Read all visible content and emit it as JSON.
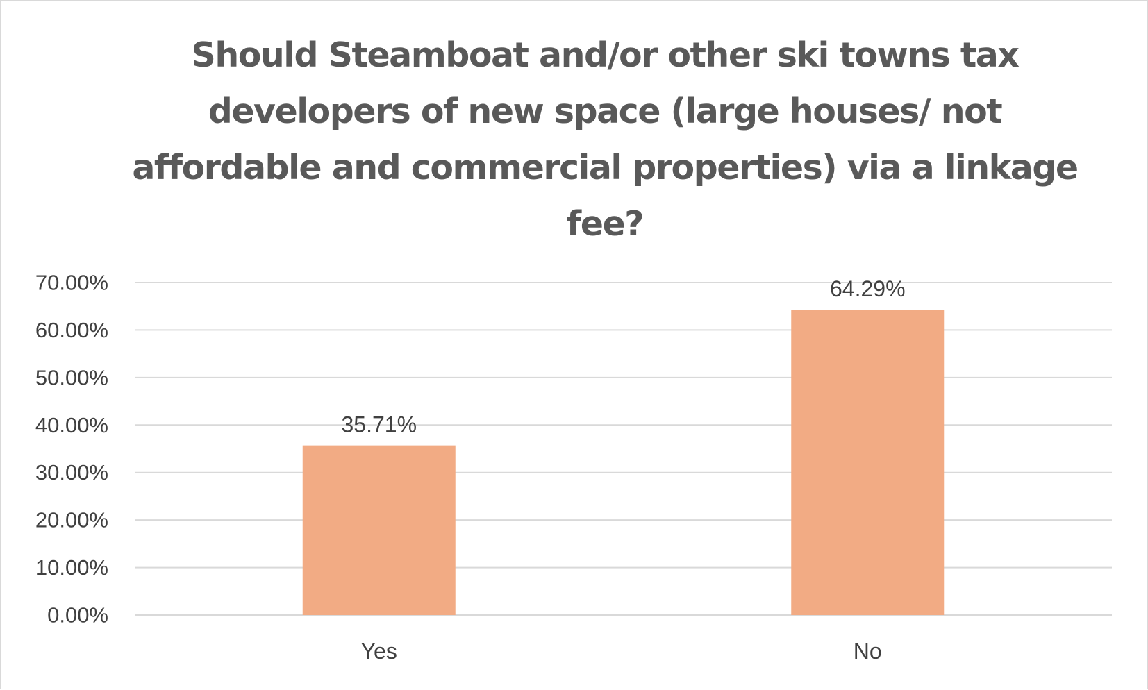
{
  "chart_data": {
    "type": "bar",
    "title": "Should Steamboat and/or other ski towns tax developers of new space (large houses/ not affordable and commercial properties) via a linkage fee?",
    "categories": [
      "Yes",
      "No"
    ],
    "values": [
      35.71,
      64.29
    ],
    "data_labels": [
      "35.71%",
      "64.29%"
    ],
    "ylim": [
      0,
      70
    ],
    "y_ticks": [
      0,
      10,
      20,
      30,
      40,
      50,
      60,
      70
    ],
    "y_tick_labels": [
      "0.00%",
      "10.00%",
      "20.00%",
      "30.00%",
      "40.00%",
      "50.00%",
      "60.00%",
      "70.00%"
    ],
    "xlabel": "",
    "ylabel": "",
    "grid": true,
    "legend": "none",
    "colors": {
      "bar": "#f2ab84",
      "grid": "#d9d9d9",
      "text": "#404040",
      "title": "#595959"
    }
  }
}
